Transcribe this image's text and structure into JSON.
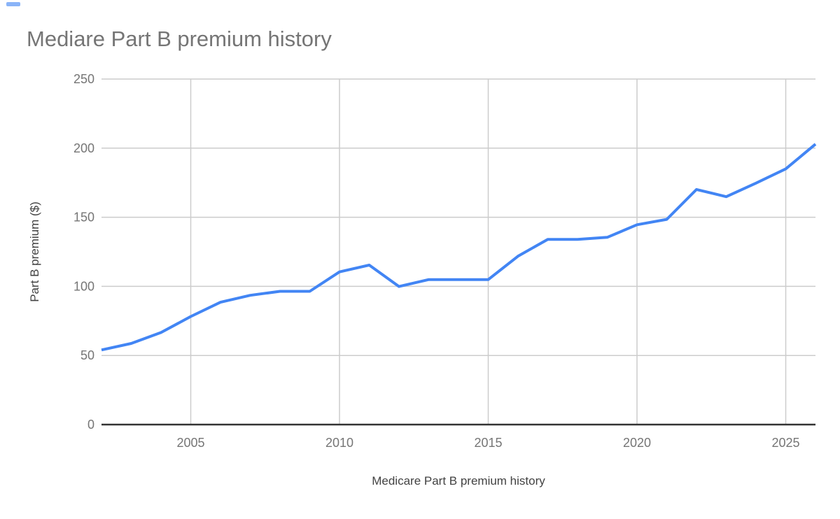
{
  "title": "Mediare Part B premium history",
  "axes": {
    "y_title": "Part B premium ($)",
    "x_title": "Medicare Part B premium history"
  },
  "chart_data": {
    "type": "line",
    "title": "Mediare Part B premium history",
    "xlabel": "Medicare Part B premium history",
    "ylabel": "Part B premium ($)",
    "x": [
      2002,
      2003,
      2004,
      2005,
      2006,
      2007,
      2008,
      2009,
      2010,
      2011,
      2012,
      2013,
      2014,
      2015,
      2016,
      2017,
      2018,
      2019,
      2020,
      2021,
      2022,
      2023,
      2024,
      2025,
      2026
    ],
    "series": [
      {
        "name": "Part B premium",
        "values": [
          54.0,
          58.7,
          66.6,
          78.2,
          88.5,
          93.5,
          96.4,
          96.4,
          110.5,
          115.4,
          99.9,
          104.9,
          104.9,
          104.9,
          121.8,
          134.0,
          134.0,
          135.5,
          144.6,
          148.5,
          170.1,
          164.9,
          174.7,
          185.0,
          202.9
        ]
      }
    ],
    "xlim": [
      2002,
      2026
    ],
    "ylim": [
      0,
      250
    ],
    "x_ticks": [
      2005,
      2010,
      2015,
      2020,
      2025
    ],
    "y_ticks": [
      0,
      50,
      100,
      150,
      200,
      250
    ],
    "grid": true,
    "legend": "none",
    "colors": {
      "line": "#4285f4",
      "grid": "#cccccc",
      "axis": "#333333",
      "tick_label": "#757575",
      "axis_title": "#424242",
      "title": "#757575"
    }
  }
}
